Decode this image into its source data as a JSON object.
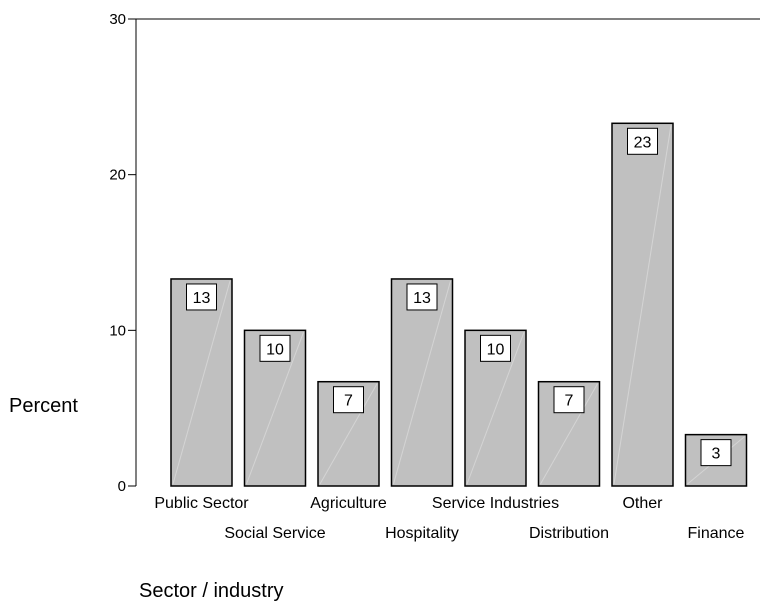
{
  "chart_data": {
    "type": "bar",
    "title": "",
    "xlabel": "Sector / industry",
    "ylabel": "Percent",
    "ylim": [
      0,
      30
    ],
    "yticks": [
      0,
      10,
      20,
      30
    ],
    "grid": false,
    "categories": [
      "Public Sector",
      "Social Service",
      "Agriculture",
      "Hospitality",
      "Service Industries",
      "Distribution",
      "Other",
      "Finance"
    ],
    "values": [
      13.3,
      10.0,
      6.7,
      13.3,
      10.0,
      6.7,
      23.3,
      3.3
    ],
    "data_labels": [
      "13",
      "10",
      "7",
      "13",
      "10",
      "7",
      "23",
      "3"
    ],
    "colors": {
      "bar_fill": "#c0c0c0",
      "bar_stroke": "#000000",
      "axis": "#000000",
      "label_box_fill": "#ffffff"
    }
  }
}
